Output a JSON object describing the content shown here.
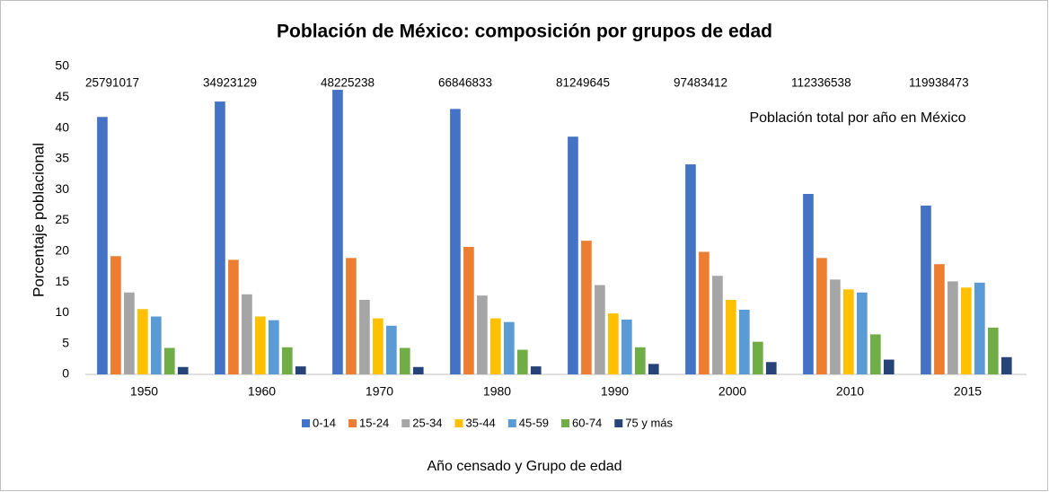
{
  "chart_data": {
    "type": "bar",
    "title": "Población de México: composición por grupos de edad",
    "xlabel": "Año censado y Grupo de edad",
    "ylabel": "Porcentaje poblacional",
    "categories": [
      "1950",
      "1960",
      "1970",
      "1980",
      "1990",
      "2000",
      "2010",
      "2015"
    ],
    "population_labels": [
      25791017,
      34923129,
      48225238,
      66846833,
      81249645,
      97483412,
      112336538,
      119938473
    ],
    "annotation": "Población total por año en México",
    "series": [
      {
        "name": "0-14",
        "color": "#4472c4",
        "values": [
          41.8,
          44.3,
          46.2,
          43.1,
          38.6,
          34.1,
          29.3,
          27.4
        ]
      },
      {
        "name": "15-24",
        "color": "#ed7d31",
        "values": [
          19.2,
          18.6,
          18.9,
          20.7,
          21.7,
          19.9,
          18.9,
          17.9
        ]
      },
      {
        "name": "25-34",
        "color": "#a5a5a5",
        "values": [
          13.3,
          13.0,
          12.1,
          12.8,
          14.5,
          16.0,
          15.4,
          15.1
        ]
      },
      {
        "name": "35-44",
        "color": "#ffc000",
        "values": [
          10.6,
          9.4,
          9.1,
          9.1,
          9.9,
          12.1,
          13.8,
          14.1
        ]
      },
      {
        "name": "45-59",
        "color": "#5b9bd5",
        "values": [
          9.4,
          8.8,
          7.9,
          8.5,
          8.9,
          10.5,
          13.3,
          14.9
        ]
      },
      {
        "name": "60-74",
        "color": "#70ad47",
        "values": [
          4.3,
          4.4,
          4.3,
          4.0,
          4.4,
          5.3,
          6.5,
          7.6
        ]
      },
      {
        "name": "75 y más",
        "color": "#264478",
        "values": [
          1.2,
          1.3,
          1.2,
          1.3,
          1.7,
          2.0,
          2.4,
          2.8
        ]
      }
    ],
    "ylim": [
      0,
      50
    ],
    "yticks": [
      0,
      5,
      10,
      15,
      20,
      25,
      30,
      35,
      40,
      45,
      50
    ],
    "grid": false,
    "legend": "bottom"
  }
}
